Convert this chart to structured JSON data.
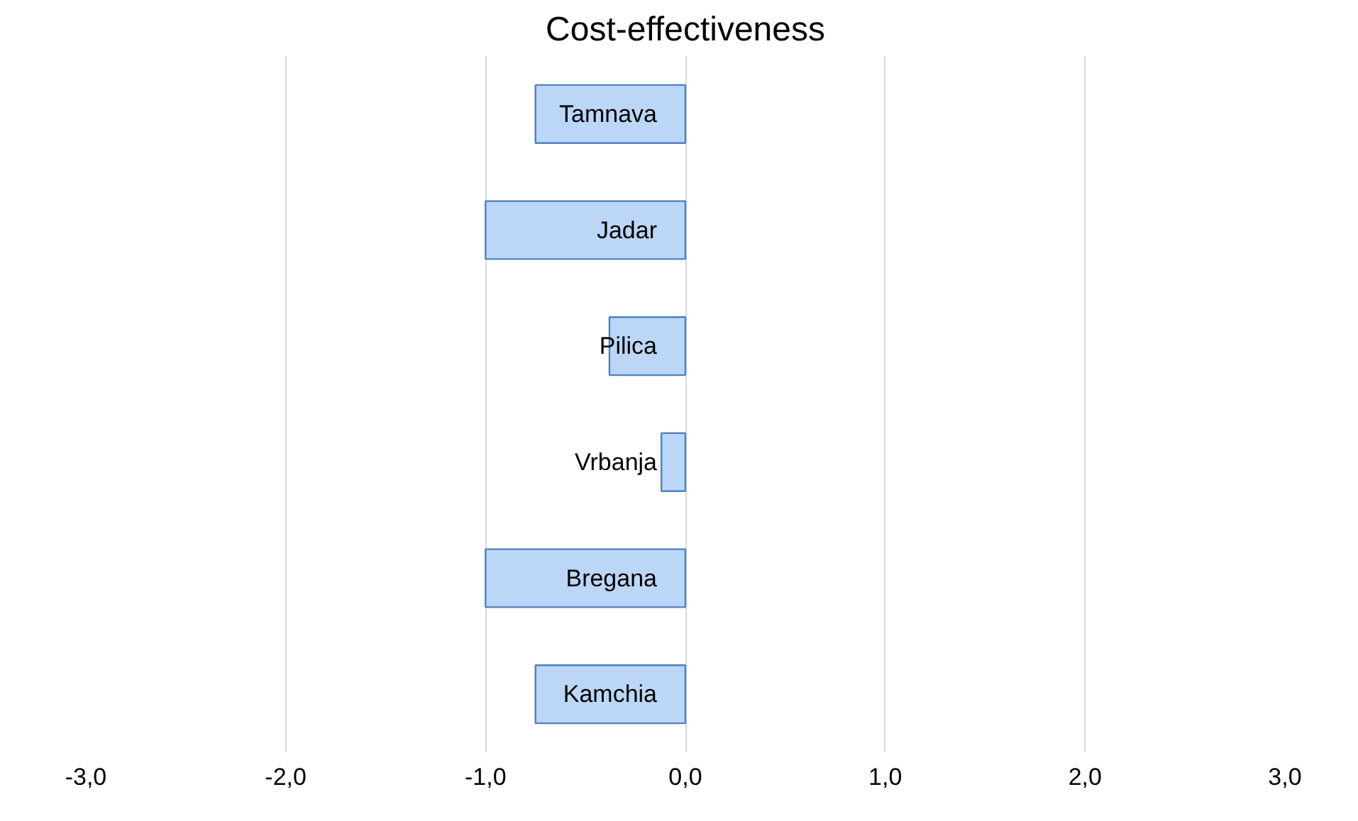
{
  "chart_data": {
    "type": "bar",
    "title": "Cost-effectiveness",
    "orientation": "horizontal",
    "categories": [
      "Tamnava",
      "Jadar",
      "Pilica",
      "Vrbanja",
      "Bregana",
      "Kamchia"
    ],
    "values": [
      -0.75,
      -1.0,
      -0.38,
      -0.12,
      -1.0,
      -0.75
    ],
    "color": "#bcd6f7",
    "xlim": [
      -3,
      3
    ],
    "xticks": [
      {
        "value": -3,
        "label": "-3,0"
      },
      {
        "value": -2,
        "label": "-2,0"
      },
      {
        "value": -1,
        "label": "-1,0"
      },
      {
        "value": 0,
        "label": "0,0"
      },
      {
        "value": 1,
        "label": "1,0"
      },
      {
        "value": 2,
        "label": "2,0"
      },
      {
        "value": 3,
        "label": "3,0"
      }
    ],
    "grid": "x"
  }
}
